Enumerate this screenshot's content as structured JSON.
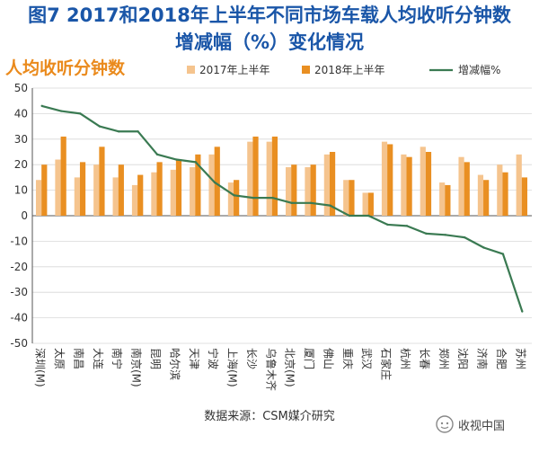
{
  "title": {
    "line1": "图7 2017和2018年上半年不同市场车载人均收听分钟数",
    "line2": "增减幅（%）变化情况"
  },
  "source": "数据来源：CSM媒介研究",
  "watermark": "收视中国",
  "colors": {
    "bar2017": "#f5c48e",
    "bar2018": "#e98f22",
    "line": "#3a7a52",
    "subtitle": "#ea8a1c",
    "title": "#1a56a8"
  },
  "chart_data": {
    "type": "bar",
    "subtitle": "人均收听分钟数",
    "ylim": [
      -50,
      50
    ],
    "yticks": [
      50,
      40,
      30,
      20,
      10,
      0,
      -10,
      -20,
      -30,
      -40,
      -50
    ],
    "legend_position": "top-right",
    "categories": [
      "深圳(M)",
      "太原",
      "南昌",
      "大连",
      "南宁",
      "南京(M)",
      "昆明",
      "哈尔滨",
      "天津",
      "宁波",
      "上海(M)",
      "长沙",
      "乌鲁木齐",
      "北京(M)",
      "厦门",
      "佛山",
      "重庆",
      "武汉",
      "石家庄",
      "杭州",
      "长春",
      "郑州",
      "沈阳",
      "济南",
      "合肥",
      "苏州"
    ],
    "series": [
      {
        "name": "2017年上半年",
        "kind": "bar",
        "values": [
          14,
          22,
          15,
          20,
          15,
          12,
          17,
          18,
          19,
          24,
          13,
          29,
          29,
          19,
          19,
          24,
          14,
          9,
          29,
          24,
          27,
          13,
          23,
          16,
          20,
          24
        ]
      },
      {
        "name": "2018年上半年",
        "kind": "bar",
        "values": [
          20,
          31,
          21,
          27,
          20,
          16,
          21,
          22,
          24,
          27,
          14,
          31,
          31,
          20,
          20,
          25,
          14,
          9,
          28,
          23,
          25,
          12,
          21,
          14,
          17,
          15
        ]
      },
      {
        "name": "增减幅%",
        "kind": "line",
        "values": [
          43,
          41,
          40,
          35,
          33,
          33,
          24,
          22,
          21,
          13,
          8,
          7,
          7,
          5,
          5,
          4,
          0,
          0,
          -3.5,
          -4,
          -7,
          -7.5,
          -8.5,
          -12.5,
          -15,
          -37.5
        ]
      }
    ]
  }
}
